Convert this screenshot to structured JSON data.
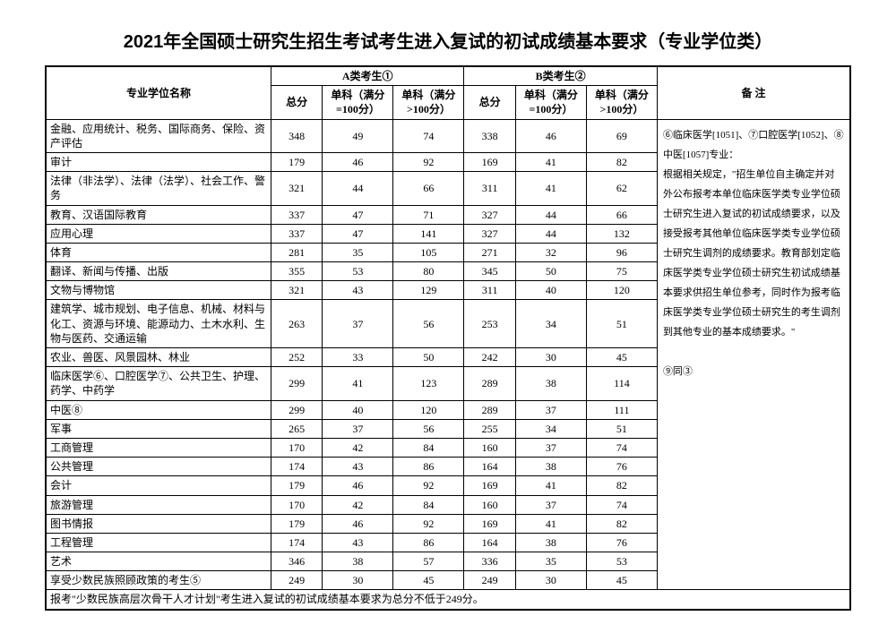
{
  "title": "2021年全国硕士研究生招生考试考生进入复试的初试成绩基本要求（专业学位类）",
  "headers": {
    "name": "专业学位名称",
    "groupA": "A类考生①",
    "groupB": "B类考生②",
    "total": "总分",
    "sub100": "单科（满分=100分）",
    "subGT100": "单科（满分>100分）",
    "notes": "备  注"
  },
  "rows": [
    {
      "name": "金融、应用统计、税务、国际商务、保险、资产评估",
      "a": [
        348,
        49,
        74
      ],
      "b": [
        338,
        46,
        69
      ]
    },
    {
      "name": "审计",
      "a": [
        179,
        46,
        92
      ],
      "b": [
        169,
        41,
        82
      ]
    },
    {
      "name": "法律（非法学）、法律（法学）、社会工作、警务",
      "a": [
        321,
        44,
        66
      ],
      "b": [
        311,
        41,
        62
      ]
    },
    {
      "name": "教育、汉语国际教育",
      "a": [
        337,
        47,
        71
      ],
      "b": [
        327,
        44,
        66
      ]
    },
    {
      "name": "应用心理",
      "a": [
        337,
        47,
        141
      ],
      "b": [
        327,
        44,
        132
      ]
    },
    {
      "name": "体育",
      "a": [
        281,
        35,
        105
      ],
      "b": [
        271,
        32,
        96
      ]
    },
    {
      "name": "翻译、新闻与传播、出版",
      "a": [
        355,
        53,
        80
      ],
      "b": [
        345,
        50,
        75
      ]
    },
    {
      "name": "文物与博物馆",
      "a": [
        321,
        43,
        129
      ],
      "b": [
        311,
        40,
        120
      ]
    },
    {
      "name": "建筑学、城市规划、电子信息、机械、材料与化工、资源与环境、能源动力、土木水利、生物与医药、交通运输",
      "a": [
        263,
        37,
        56
      ],
      "b": [
        253,
        34,
        51
      ]
    },
    {
      "name": "农业、兽医、风景园林、林业",
      "a": [
        252,
        33,
        50
      ],
      "b": [
        242,
        30,
        45
      ]
    },
    {
      "name": "临床医学⑥、口腔医学⑦、公共卫生、护理、药学、中药学",
      "a": [
        299,
        41,
        123
      ],
      "b": [
        289,
        38,
        114
      ]
    },
    {
      "name": "中医⑧",
      "a": [
        299,
        40,
        120
      ],
      "b": [
        289,
        37,
        111
      ]
    },
    {
      "name": "军事",
      "a": [
        265,
        37,
        56
      ],
      "b": [
        255,
        34,
        51
      ]
    },
    {
      "name": "工商管理",
      "a": [
        170,
        42,
        84
      ],
      "b": [
        160,
        37,
        74
      ]
    },
    {
      "name": "公共管理",
      "a": [
        174,
        43,
        86
      ],
      "b": [
        164,
        38,
        76
      ]
    },
    {
      "name": "会计",
      "a": [
        179,
        46,
        92
      ],
      "b": [
        169,
        41,
        82
      ]
    },
    {
      "name": "旅游管理",
      "a": [
        170,
        42,
        84
      ],
      "b": [
        160,
        37,
        74
      ]
    },
    {
      "name": "图书情报",
      "a": [
        179,
        46,
        92
      ],
      "b": [
        169,
        41,
        82
      ]
    },
    {
      "name": "工程管理",
      "a": [
        174,
        43,
        86
      ],
      "b": [
        164,
        38,
        76
      ]
    },
    {
      "name": "艺术",
      "a": [
        346,
        38,
        57
      ],
      "b": [
        336,
        35,
        53
      ]
    },
    {
      "name": "享受少数民族照顾政策的考生⑤",
      "a": [
        249,
        30,
        45
      ],
      "b": [
        249,
        30,
        45
      ]
    }
  ],
  "notes": "⑥临床医学[1051]、⑦口腔医学[1052]、⑧中医[1057]专业：\n根据相关规定，\"招生单位自主确定并对外公布报考本单位临床医学类专业学位硕士研究生进入复试的初试成绩要求，以及接受报考其他单位临床医学类专业学位硕士研究生调剂的成绩要求。教育部划定临床医学类专业学位硕士研究生初试成绩基本要求供招生单位参考，同时作为报考临床医学类专业学位硕士研究生的考生调剂到其他专业的基本成绩要求。\"\n\n⑨同③",
  "footnote": "报考\"少数民族高层次骨干人才计划\"考生进入复试的初试成绩基本要求为总分不低于249分。"
}
